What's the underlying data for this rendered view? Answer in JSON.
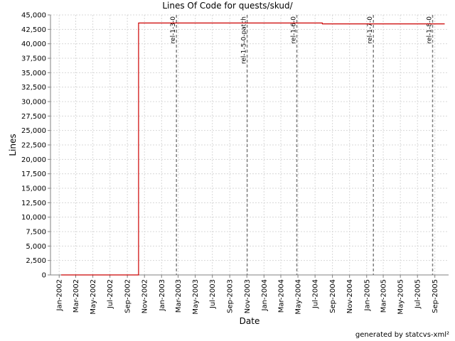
{
  "chart_data": {
    "type": "line",
    "title": "Lines Of Code for quests/skud/",
    "xlabel": "Date",
    "ylabel": "Lines",
    "ylim": [
      0,
      45000
    ],
    "xlim": [
      "2001-12-01",
      "2005-10-20"
    ],
    "grid": true,
    "line_color": "#cc0000",
    "yticks": [
      0,
      2500,
      5000,
      7500,
      10000,
      12500,
      15000,
      17500,
      20000,
      22500,
      25000,
      27500,
      30000,
      32500,
      35000,
      37500,
      40000,
      42500,
      45000
    ],
    "ytick_labels": [
      "0",
      "2,500",
      "5,000",
      "7,500",
      "10,000",
      "12,500",
      "15,000",
      "17,500",
      "20,000",
      "22,500",
      "25,000",
      "27,500",
      "30,000",
      "32,500",
      "35,000",
      "37,500",
      "40,000",
      "42,500",
      "45,000"
    ],
    "xticks": [
      {
        "date": "2002-01-01",
        "label": "Jan-2002"
      },
      {
        "date": "2002-03-01",
        "label": "Mar-2002"
      },
      {
        "date": "2002-05-01",
        "label": "May-2002"
      },
      {
        "date": "2002-07-01",
        "label": "Jul-2002"
      },
      {
        "date": "2002-09-01",
        "label": "Sep-2002"
      },
      {
        "date": "2002-11-01",
        "label": "Nov-2002"
      },
      {
        "date": "2003-01-01",
        "label": "Jan-2003"
      },
      {
        "date": "2003-03-01",
        "label": "Mar-2003"
      },
      {
        "date": "2003-05-01",
        "label": "May-2003"
      },
      {
        "date": "2003-07-01",
        "label": "Jul-2003"
      },
      {
        "date": "2003-09-01",
        "label": "Sep-2003"
      },
      {
        "date": "2003-11-01",
        "label": "Nov-2003"
      },
      {
        "date": "2004-01-01",
        "label": "Jan-2004"
      },
      {
        "date": "2004-03-01",
        "label": "Mar-2004"
      },
      {
        "date": "2004-05-01",
        "label": "May-2004"
      },
      {
        "date": "2004-07-01",
        "label": "Jul-2004"
      },
      {
        "date": "2004-09-01",
        "label": "Sep-2004"
      },
      {
        "date": "2004-11-01",
        "label": "Nov-2004"
      },
      {
        "date": "2005-01-01",
        "label": "Jan-2005"
      },
      {
        "date": "2005-03-01",
        "label": "Mar-2005"
      },
      {
        "date": "2005-05-01",
        "label": "May-2005"
      },
      {
        "date": "2005-07-01",
        "label": "Jul-2005"
      },
      {
        "date": "2005-09-01",
        "label": "Sep-2005"
      }
    ],
    "series": [
      {
        "step": true,
        "points": [
          {
            "x": "2002-01-08",
            "y": 0
          },
          {
            "x": "2002-10-11",
            "y": 0
          },
          {
            "x": "2002-10-11",
            "y": 43600
          },
          {
            "x": "2004-07-27",
            "y": 43600
          },
          {
            "x": "2004-07-27",
            "y": 43450
          },
          {
            "x": "2005-10-06",
            "y": 43450
          }
        ]
      }
    ],
    "markers": [
      {
        "date": "2003-02-23",
        "label": "rel-1-3-0"
      },
      {
        "date": "2003-11-02",
        "label": "rel-1-5-0-patch"
      },
      {
        "date": "2004-04-27",
        "label": "rel-1-6-0"
      },
      {
        "date": "2005-01-25",
        "label": "rel-1-7-0"
      },
      {
        "date": "2005-08-24",
        "label": "rel-1-8-0"
      }
    ]
  },
  "footer": "generated by statcvs-xml²"
}
